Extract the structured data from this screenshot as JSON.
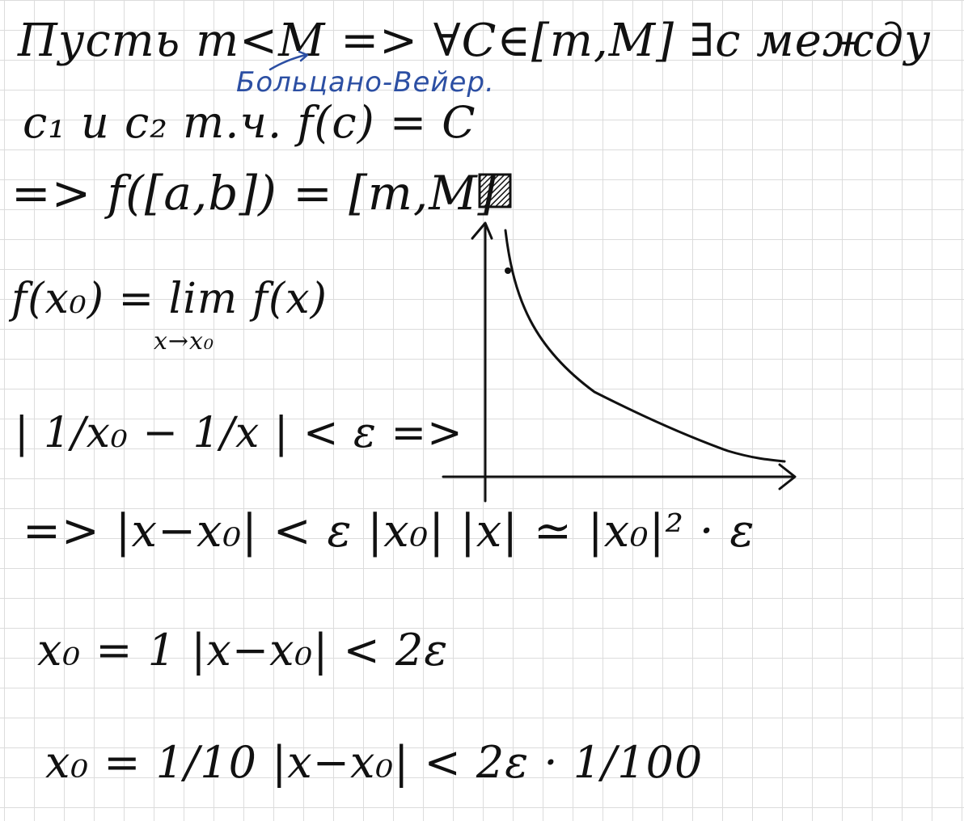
{
  "notes": {
    "line1": "Пусть m<M => ∀C∈[m,M] ∃c между",
    "annotation": "Больцано-Вейер.",
    "line2": "c₁ и c₂ т.ч. f(c) = C",
    "line3": "=> f([a,b]) = [m,M]",
    "line4": "f(x₀) = lim f(x)",
    "line4_sub": "x→x₀",
    "line5": "| 1/x₀ − 1/x | < ε =>",
    "line6": "=> |x−x₀| < ε |x₀| |x| ≃ |x₀|² · ε",
    "line7": "x₀ = 1   |x−x₀| < 2ε",
    "line8": "x₀ = 1/10   |x−x₀| < 2ε · 1/100"
  },
  "colors": {
    "ink": "#111111",
    "annotation_ink": "#2c4fa3",
    "grid": "#dcdcdc"
  }
}
